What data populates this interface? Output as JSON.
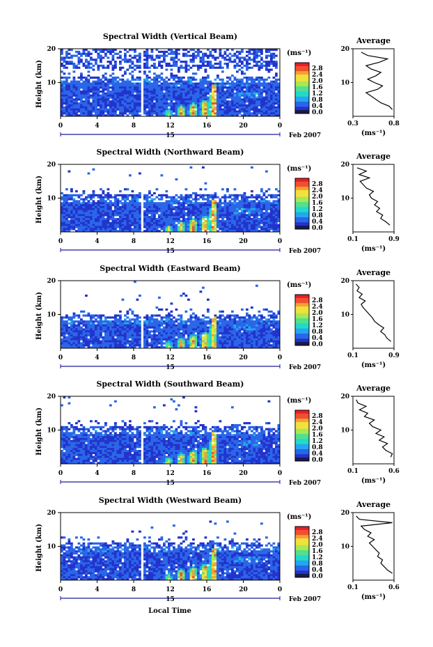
{
  "common": {
    "height_axis_label": "Height (km)",
    "height_ticks": [
      "20",
      "10"
    ],
    "time_ticks": [
      "0",
      "4",
      "8",
      "12",
      "16",
      "20",
      "0"
    ],
    "date_day": "15",
    "date_month": "Feb 2007",
    "colorbar_unit": "(ms⁻¹)",
    "colorbar_ticks": [
      "2.8",
      "2.4",
      "2.0",
      "1.6",
      "1.2",
      "0.8",
      "0.4",
      "0.0"
    ],
    "profile_title": "Average",
    "profile_xlabel": "(ms⁻¹)",
    "profile_yticks": [
      "20",
      "10"
    ],
    "x_axis_label": "Local Time"
  },
  "colors": {
    "colormap": [
      "#1a1a6e",
      "#2233cc",
      "#2a66e8",
      "#22a8f0",
      "#25d8c8",
      "#50e090",
      "#a8e850",
      "#f0e040",
      "#f8a030",
      "#f05030",
      "#e81e28"
    ],
    "profile_line": "#000000"
  },
  "chart_data": [
    {
      "type": "heatmap",
      "title": "Spectral Width (Vertical Beam)",
      "xlabel": "",
      "ylabel": "Height (km)",
      "xlim": [
        0,
        24
      ],
      "ylim": [
        0,
        20
      ],
      "colorbar_range": [
        0.0,
        2.8
      ],
      "data_top_km": 12,
      "profile": {
        "xticks": [
          "0.3",
          "0.8"
        ],
        "xlim": [
          0.3,
          0.8
        ],
        "heights": [
          2,
          3,
          4,
          5,
          6,
          7,
          8,
          9,
          10,
          11,
          12,
          13,
          14,
          15,
          16,
          17,
          18,
          19
        ],
        "values": [
          0.78,
          0.74,
          0.64,
          0.58,
          0.52,
          0.46,
          0.6,
          0.66,
          0.56,
          0.48,
          0.58,
          0.64,
          0.52,
          0.46,
          0.62,
          0.72,
          0.48,
          0.4
        ]
      }
    },
    {
      "type": "heatmap",
      "title": "Spectral Width (Northward Beam)",
      "xlabel": "",
      "ylabel": "Height (km)",
      "xlim": [
        0,
        24
      ],
      "ylim": [
        0,
        20
      ],
      "colorbar_range": [
        0.0,
        2.8
      ],
      "data_top_km": 11,
      "profile": {
        "xticks": [
          "0.1",
          "0.9"
        ],
        "xlim": [
          0.1,
          0.9
        ],
        "heights": [
          2,
          3,
          4,
          5,
          6,
          7,
          8,
          9,
          10,
          11,
          12,
          13,
          14,
          15,
          16,
          17,
          18,
          19
        ],
        "values": [
          0.82,
          0.74,
          0.64,
          0.68,
          0.56,
          0.62,
          0.52,
          0.58,
          0.46,
          0.42,
          0.5,
          0.36,
          0.3,
          0.24,
          0.42,
          0.22,
          0.36,
          0.18
        ]
      }
    },
    {
      "type": "heatmap",
      "title": "Spectral Width (Eastward Beam)",
      "xlabel": "",
      "ylabel": "Height (km)",
      "xlim": [
        0,
        24
      ],
      "ylim": [
        0,
        20
      ],
      "colorbar_range": [
        0.0,
        2.8
      ],
      "data_top_km": 10,
      "profile": {
        "xticks": [
          "0.1",
          "0.9"
        ],
        "xlim": [
          0.1,
          0.9
        ],
        "heights": [
          2,
          3,
          4,
          5,
          6,
          7,
          8,
          9,
          10,
          11,
          12,
          13,
          14,
          15,
          16,
          17,
          18,
          19
        ],
        "values": [
          0.84,
          0.76,
          0.72,
          0.64,
          0.7,
          0.6,
          0.52,
          0.48,
          0.42,
          0.36,
          0.3,
          0.26,
          0.34,
          0.22,
          0.28,
          0.18,
          0.22,
          0.16
        ]
      }
    },
    {
      "type": "heatmap",
      "title": "Spectral Width (Southward Beam)",
      "xlabel": "",
      "ylabel": "Height (km)",
      "xlim": [
        0,
        24
      ],
      "ylim": [
        0,
        20
      ],
      "colorbar_range": [
        0.0,
        2.8
      ],
      "data_top_km": 11,
      "profile": {
        "xticks": [
          "0.1",
          "0.6"
        ],
        "xlim": [
          0.1,
          0.6
        ],
        "heights": [
          2,
          3,
          4,
          5,
          6,
          7,
          8,
          9,
          10,
          11,
          12,
          13,
          14,
          15,
          16,
          17,
          18,
          19
        ],
        "values": [
          0.56,
          0.58,
          0.5,
          0.46,
          0.52,
          0.42,
          0.48,
          0.38,
          0.44,
          0.34,
          0.3,
          0.36,
          0.24,
          0.28,
          0.18,
          0.26,
          0.16,
          0.14
        ]
      }
    },
    {
      "type": "heatmap",
      "title": "Spectral Width (Westward Beam)",
      "xlabel": "Local Time",
      "ylabel": "Height (km)",
      "xlim": [
        0,
        24
      ],
      "ylim": [
        0,
        20
      ],
      "colorbar_range": [
        0.0,
        2.8
      ],
      "data_top_km": 11,
      "profile": {
        "xticks": [
          "0.1",
          "0.6"
        ],
        "xlim": [
          0.1,
          0.6
        ],
        "heights": [
          2,
          3,
          4,
          5,
          6,
          7,
          8,
          9,
          10,
          11,
          12,
          13,
          14,
          15,
          16,
          17,
          18,
          19
        ],
        "values": [
          0.58,
          0.52,
          0.48,
          0.44,
          0.46,
          0.4,
          0.42,
          0.38,
          0.34,
          0.3,
          0.36,
          0.28,
          0.32,
          0.24,
          0.2,
          0.58,
          0.18,
          0.14
        ]
      }
    }
  ]
}
